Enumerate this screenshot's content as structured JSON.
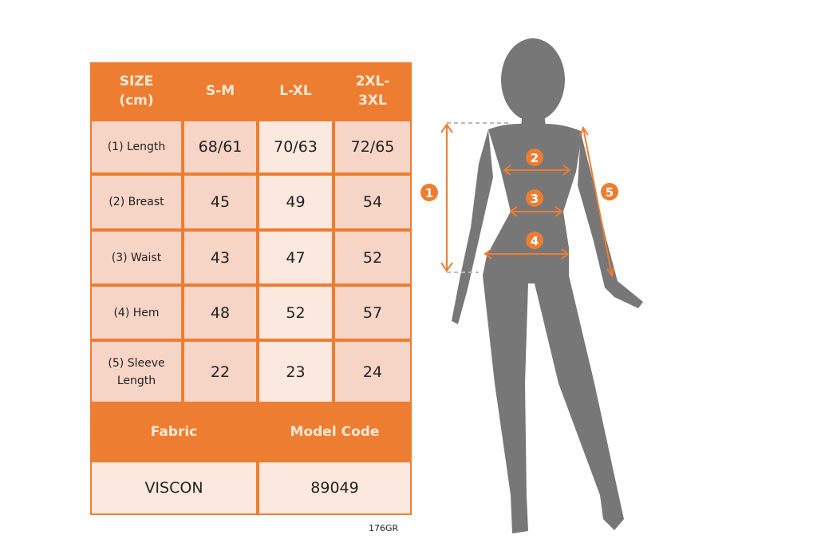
{
  "colors": {
    "header": "#ED7D31",
    "cell_dark": "#F7D5C6",
    "cell_light": "#FBE8DF",
    "silhouette": "#777777",
    "annotation": "#ED7D31"
  },
  "table": {
    "header": [
      "SIZE\n(cm)",
      "S-M",
      "L-XL",
      "2XL-\n3XL"
    ],
    "rows": [
      {
        "label": "(1) Length",
        "values": [
          "68/61",
          "70/63",
          "72/65"
        ]
      },
      {
        "label": "(2) Breast",
        "values": [
          "45",
          "49",
          "54"
        ]
      },
      {
        "label": "(3) Waist",
        "values": [
          "43",
          "47",
          "52"
        ]
      },
      {
        "label": "(4) Hem",
        "values": [
          "48",
          "52",
          "57"
        ]
      },
      {
        "label": "(5) Sleeve\nLength",
        "values": [
          "22",
          "23",
          "24"
        ]
      }
    ],
    "fabric_label": "Fabric",
    "model_code_label": "Model Code",
    "fabric_value": "VISCON",
    "model_code_value": "89049"
  },
  "figure": {
    "markers": [
      "1",
      "2",
      "3",
      "4",
      "5"
    ]
  },
  "footer_code": "176GR"
}
